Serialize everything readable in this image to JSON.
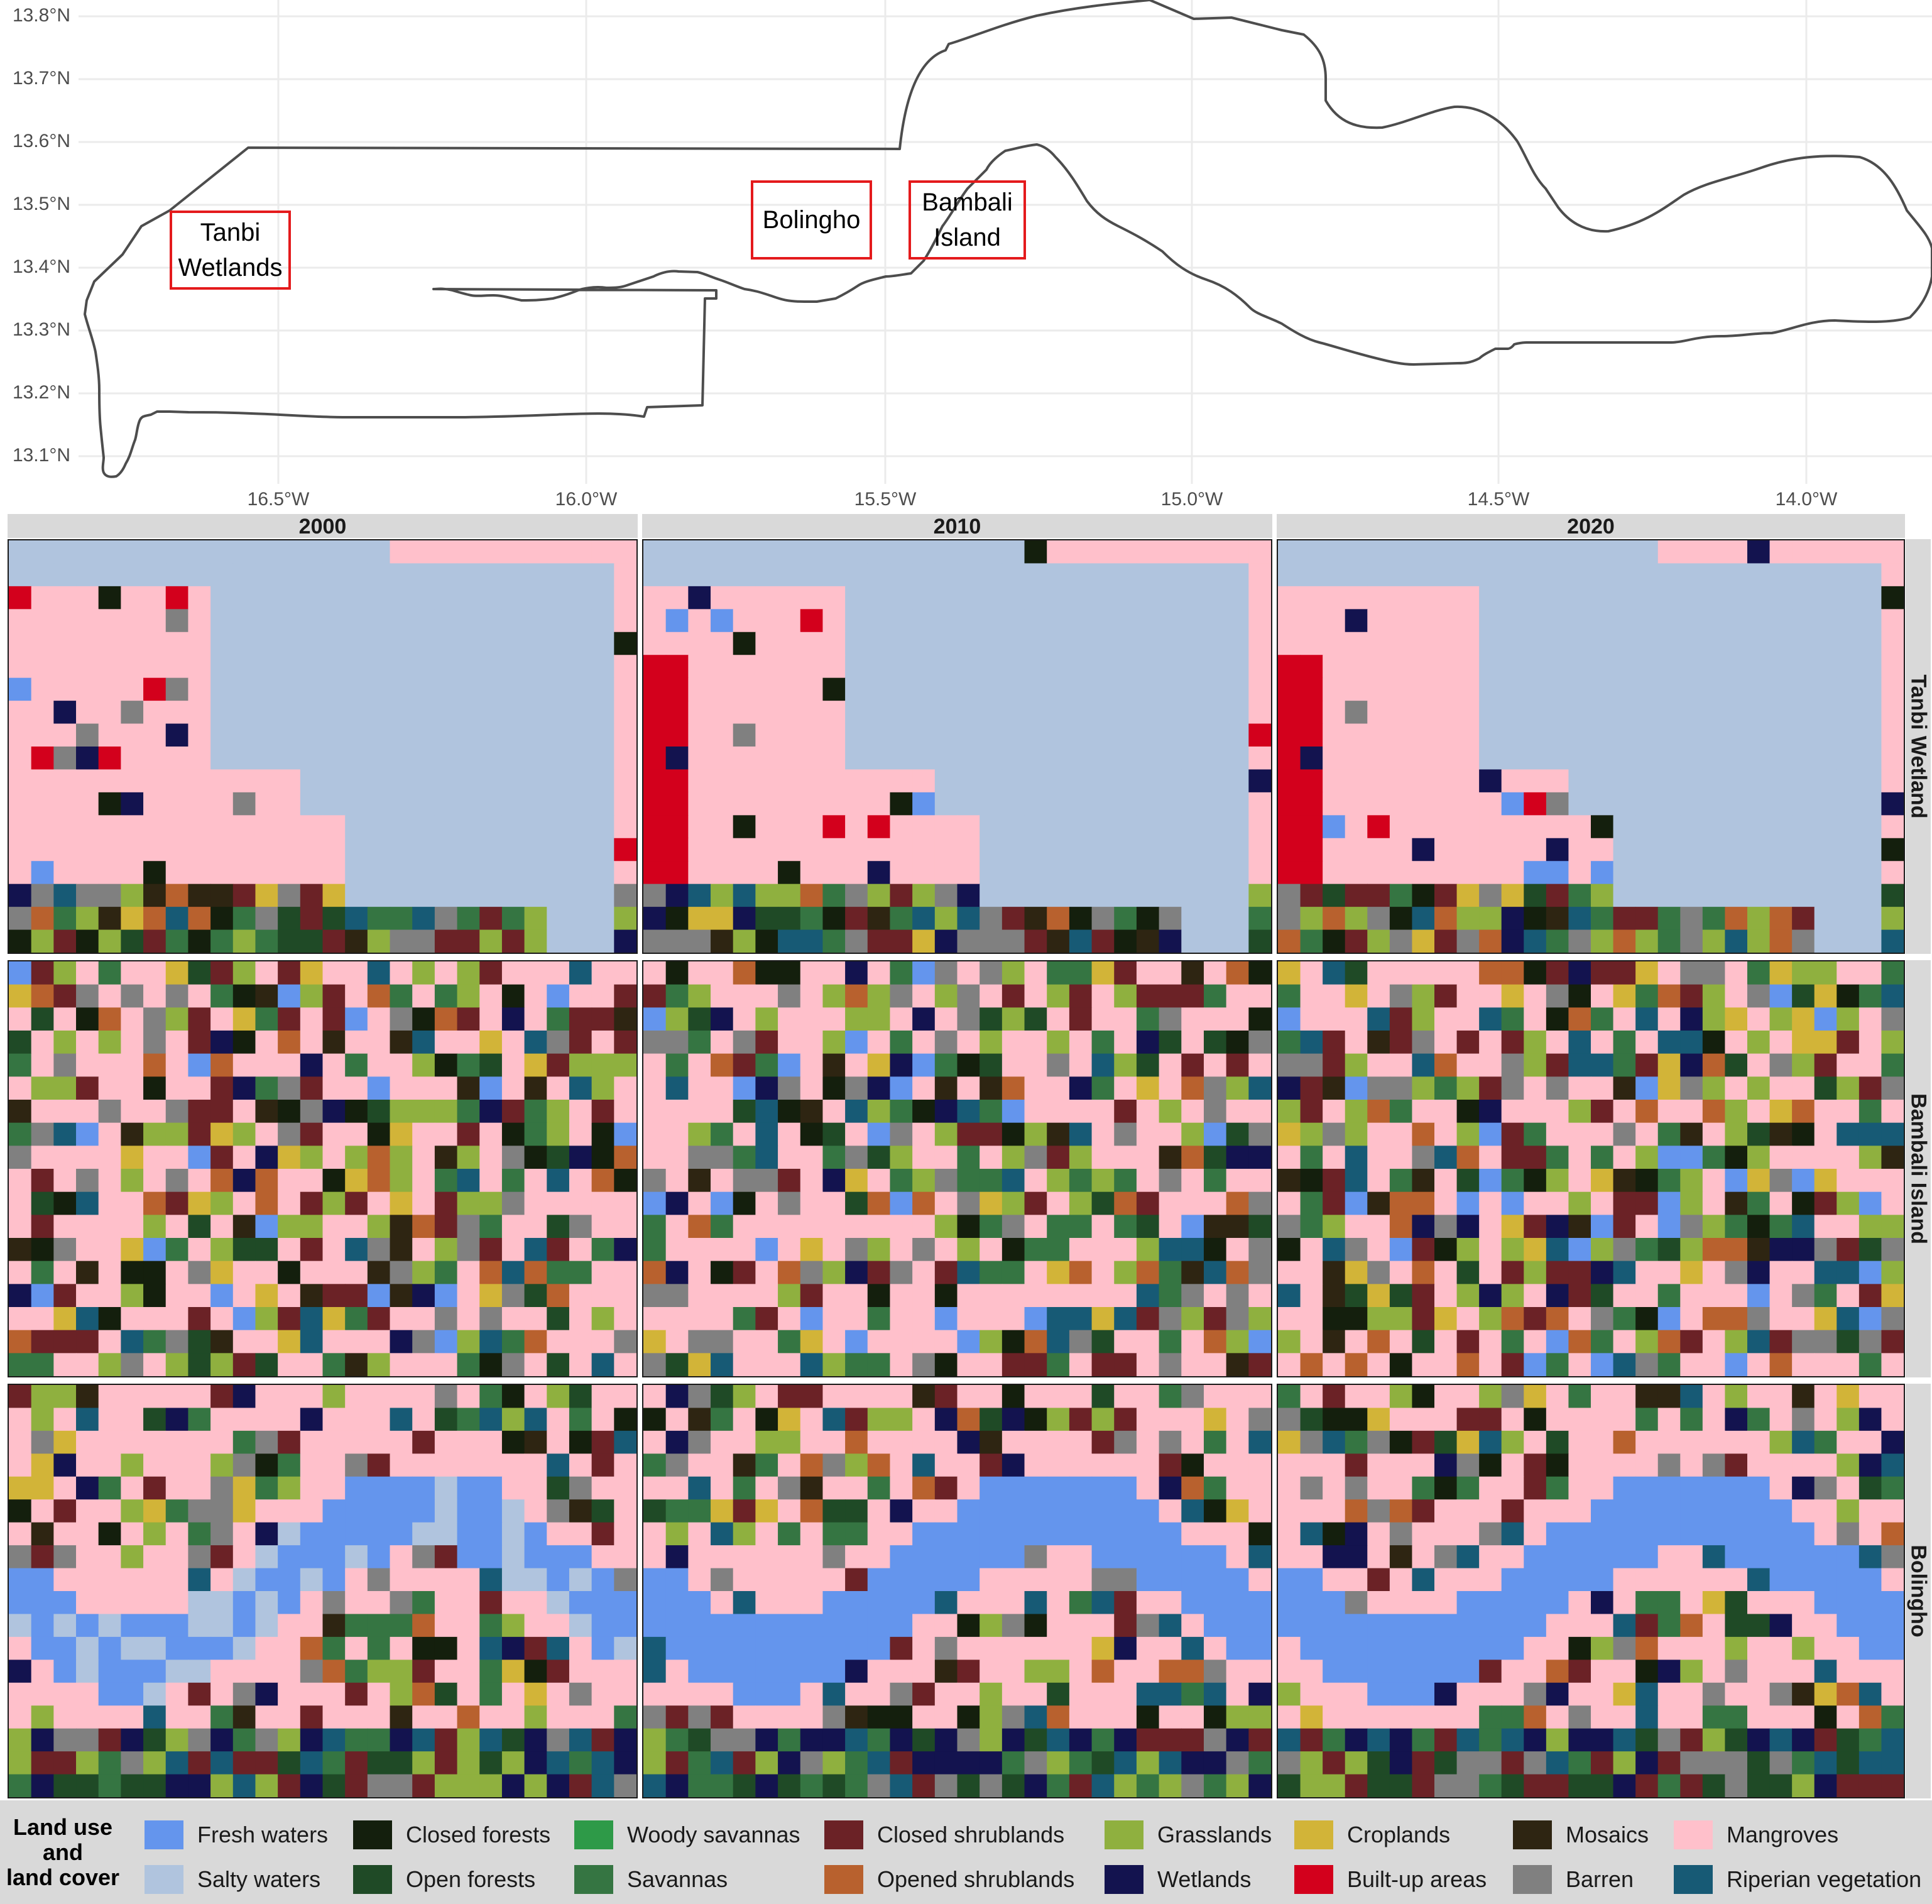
{
  "map": {
    "lat_ticks": [
      "13.8°N",
      "13.7°N",
      "13.6°N",
      "13.5°N",
      "13.4°N",
      "13.3°N",
      "13.2°N",
      "13.1°N"
    ],
    "lon_ticks": [
      "16.5°W",
      "16.0°W",
      "15.5°W",
      "15.0°W",
      "14.5°W",
      "14.0°W"
    ],
    "sites": [
      {
        "id": "tanbi",
        "label": "Tanbi\nWetlands"
      },
      {
        "id": "bolingho",
        "label": "Bolingho"
      },
      {
        "id": "bambali",
        "label": "Bambali\nIsland"
      }
    ]
  },
  "facets": {
    "columns": [
      "2000",
      "2010",
      "2020"
    ],
    "rows": [
      "Tanbi Wetland",
      "Bambali Island",
      "Bolingho"
    ]
  },
  "legend": {
    "title": "Land use\nand\nland cover",
    "items": [
      {
        "label": "Fresh waters",
        "color": "#6495ed"
      },
      {
        "label": "Salty waters",
        "color": "#b0c4de"
      },
      {
        "label": "Closed forests",
        "color": "#141f0d"
      },
      {
        "label": "Open forests",
        "color": "#1f4a26"
      },
      {
        "label": "Woody savannas",
        "color": "#2e9a48"
      },
      {
        "label": "Savannas",
        "color": "#357542"
      },
      {
        "label": "Closed shrublands",
        "color": "#6b2226"
      },
      {
        "label": "Opened shrublands",
        "color": "#b8612e"
      },
      {
        "label": "Grasslands",
        "color": "#8fb03f"
      },
      {
        "label": "Wetlands",
        "color": "#13134f"
      },
      {
        "label": "Croplands",
        "color": "#d2b438"
      },
      {
        "label": "Built-up areas",
        "color": "#d3001c"
      },
      {
        "label": "Mosaics",
        "color": "#2e2512"
      },
      {
        "label": "Barren",
        "color": "#808080"
      },
      {
        "label": "Mangroves",
        "color": "#ffc0cb"
      },
      {
        "label": "Riperian vegetation",
        "color": "#175a75"
      }
    ]
  }
}
